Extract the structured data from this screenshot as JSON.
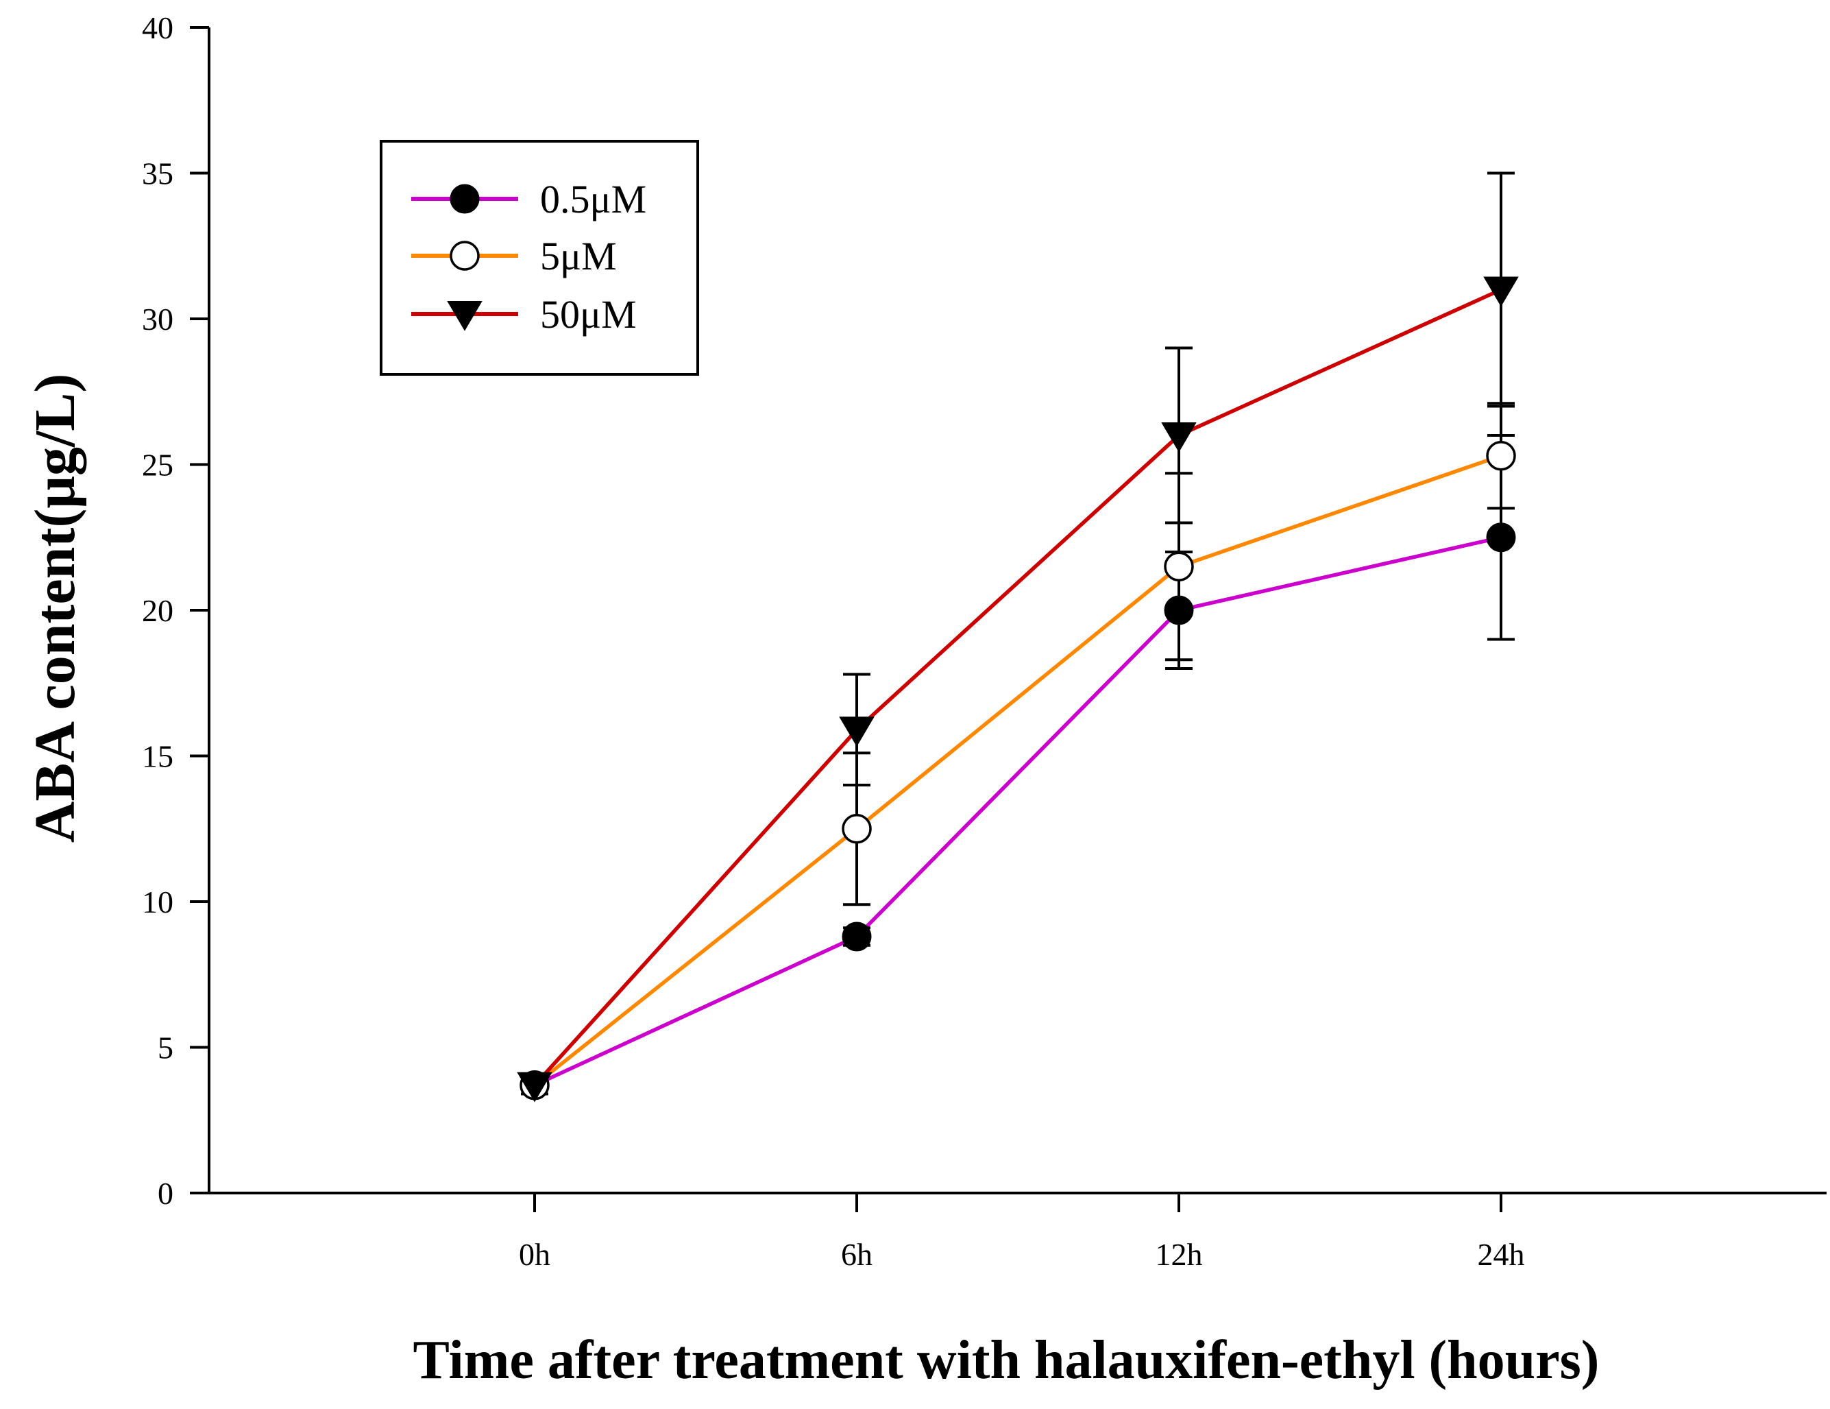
{
  "chart_data": {
    "type": "line",
    "title": "",
    "xlabel": "Time after treatment with halauxifen-ethyl (hours)",
    "ylabel": "ABA content(μg/L)",
    "categories": [
      "0h",
      "6h",
      "12h",
      "24h"
    ],
    "ylim": [
      0,
      40
    ],
    "yticks": [
      0,
      5,
      10,
      15,
      20,
      25,
      30,
      35,
      40
    ],
    "grid": false,
    "legend_position": "top-left",
    "series": [
      {
        "name": "0.5μM",
        "color": "#cc00cc",
        "marker": "filled-circle",
        "values": [
          3.7,
          8.8,
          20.0,
          22.5
        ],
        "errors": [
          0.3,
          0.3,
          2.0,
          3.5
        ]
      },
      {
        "name": "5μM",
        "color": "#ff8800",
        "marker": "open-circle",
        "values": [
          3.7,
          12.5,
          21.5,
          25.3
        ],
        "errors": [
          0.3,
          2.6,
          3.2,
          1.8
        ]
      },
      {
        "name": "50μM",
        "color": "#cc0000",
        "marker": "down-triangle",
        "values": [
          3.7,
          15.9,
          26.0,
          31.0
        ],
        "errors": [
          0.3,
          1.9,
          3.0,
          4.0
        ]
      }
    ]
  }
}
